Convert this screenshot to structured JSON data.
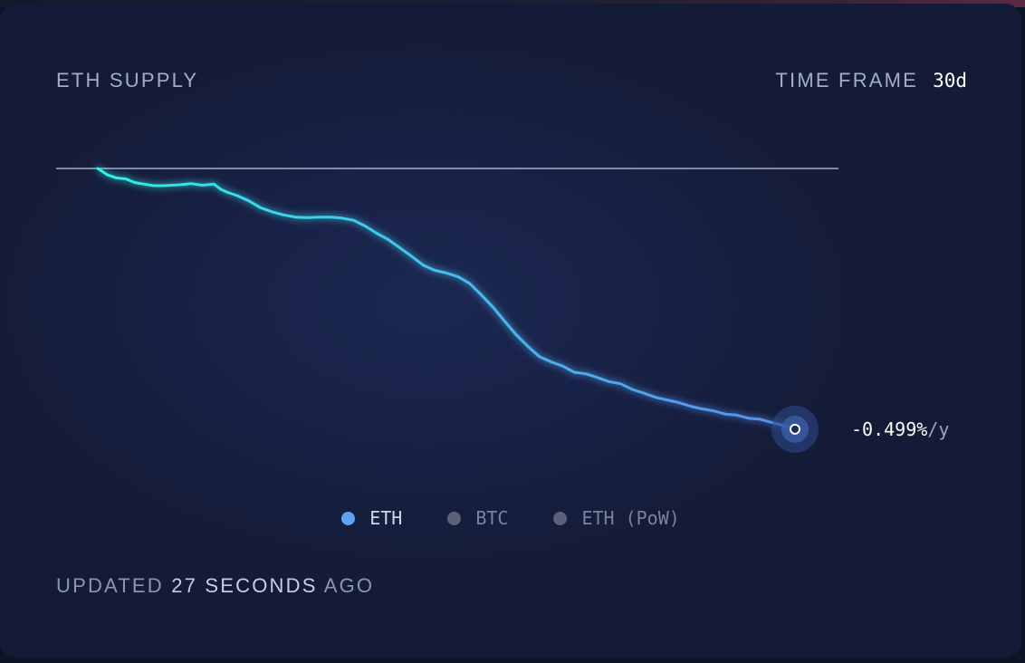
{
  "header": {
    "title": "ETH SUPPLY",
    "timeframe_label": "TIME FRAME",
    "timeframe_value": "30d"
  },
  "colors": {
    "line_start": "#2ff0e8",
    "line_end": "#5b8cf0",
    "baseline": "#a6adc8",
    "eth_dot": "#5ea2f6",
    "inactive_dot": "#5b6178",
    "active_text": "#cfd5ea",
    "inactive_text": "#7a829d"
  },
  "chart_data": {
    "type": "line",
    "title": "ETH SUPPLY",
    "baseline_value": 0,
    "ylim": [
      -0.52,
      0.0
    ],
    "xlim": [
      0,
      30
    ],
    "grid": false,
    "series": [
      {
        "name": "ETH",
        "x": [
          0,
          0.4,
          0.8,
          1.2,
          1.6,
          2.0,
          2.4,
          2.8,
          3.2,
          3.6,
          4.0,
          4.5,
          5.0,
          5.3,
          5.6,
          6.0,
          6.5,
          7.0,
          7.5,
          8.0,
          8.5,
          9.0,
          9.5,
          10.0,
          10.5,
          11.0,
          11.5,
          12.0,
          12.5,
          13.0,
          13.5,
          14.0,
          14.5,
          15.0,
          15.5,
          16.0,
          16.5,
          17.0,
          17.5,
          18.0,
          18.5,
          19.0,
          19.5,
          20.0,
          20.5,
          21.0,
          21.5,
          22.0,
          22.5,
          23.0,
          23.5,
          24.0,
          24.5,
          25.0,
          25.5,
          26.0,
          26.5,
          27.0,
          27.5,
          28.0,
          28.5,
          29.0,
          29.5,
          30.0
        ],
        "values": [
          0.0,
          -0.012,
          -0.018,
          -0.02,
          -0.027,
          -0.03,
          -0.033,
          -0.033,
          -0.032,
          -0.031,
          -0.029,
          -0.032,
          -0.03,
          -0.04,
          -0.046,
          -0.052,
          -0.062,
          -0.075,
          -0.083,
          -0.089,
          -0.093,
          -0.094,
          -0.093,
          -0.093,
          -0.095,
          -0.099,
          -0.11,
          -0.124,
          -0.136,
          -0.152,
          -0.168,
          -0.185,
          -0.195,
          -0.2,
          -0.207,
          -0.22,
          -0.242,
          -0.265,
          -0.292,
          -0.318,
          -0.34,
          -0.36,
          -0.37,
          -0.378,
          -0.39,
          -0.393,
          -0.4,
          -0.408,
          -0.412,
          -0.423,
          -0.43,
          -0.438,
          -0.443,
          -0.448,
          -0.455,
          -0.46,
          -0.464,
          -0.47,
          -0.472,
          -0.478,
          -0.48,
          -0.486,
          -0.492,
          -0.499
        ]
      }
    ],
    "end_label": {
      "value": "-0.499%",
      "unit": "/y"
    },
    "legend": [
      {
        "name": "ETH",
        "active": true
      },
      {
        "name": "BTC",
        "active": false
      },
      {
        "name": "ETH (PoW)",
        "active": false
      }
    ]
  },
  "footer": {
    "prefix": "UPDATED",
    "count": "27",
    "unit": "SECONDS",
    "suffix": "AGO"
  }
}
